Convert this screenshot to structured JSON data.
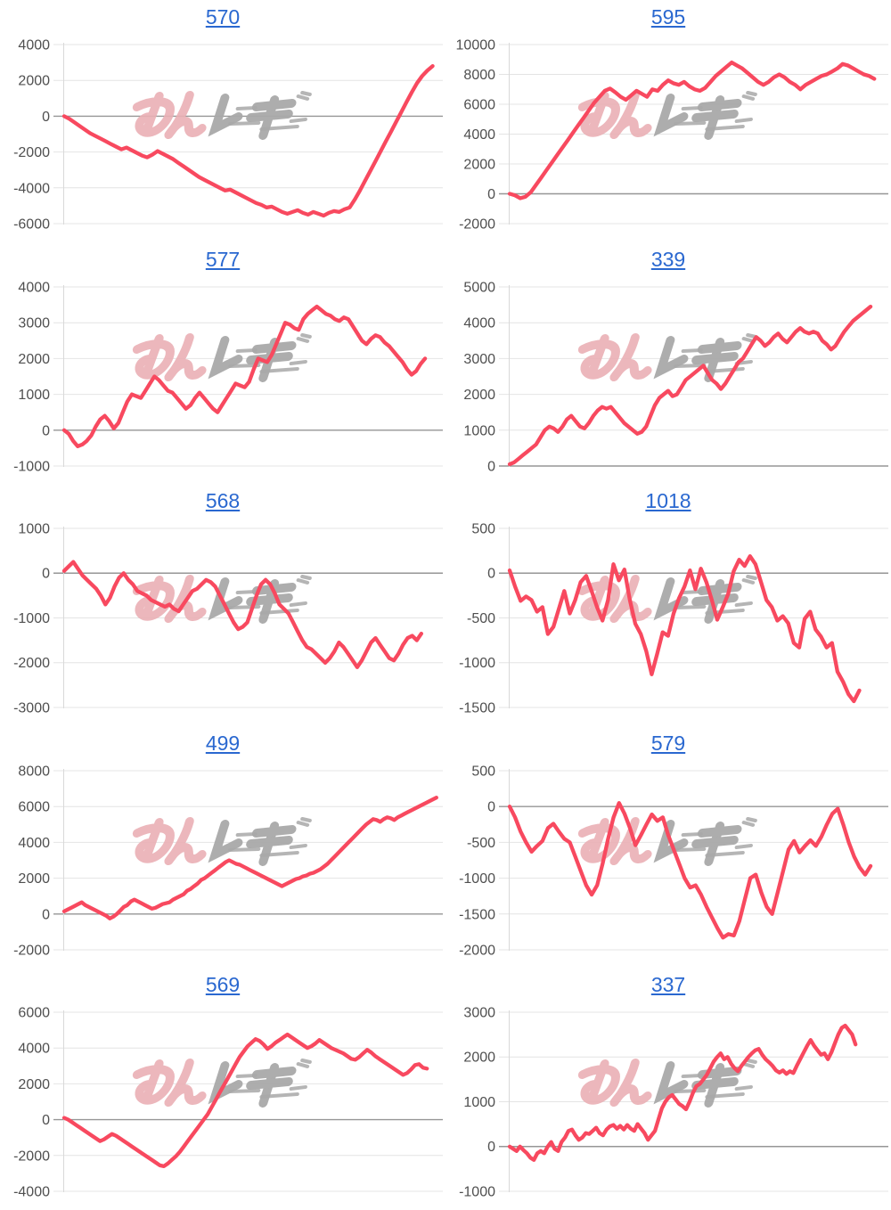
{
  "ui": {
    "watermark": {
      "pink_text": "みん",
      "gray_text": "レポ"
    },
    "colors": {
      "line": "#f8495f",
      "title_link": "#2a68d0",
      "axis_label": "#4f4f4f",
      "gridline": "#e4e4e4",
      "zero_line": "#969696",
      "axis_spine": "#d9d9d9",
      "watermark_pink": "#eab0b5",
      "watermark_gray": "#a9a9a9"
    }
  },
  "chart_data": [
    {
      "type": "line",
      "title": "570",
      "ylim": [
        -6000,
        4000
      ],
      "y_step": 2000,
      "grid": true,
      "span": 0.98,
      "values": [
        0,
        -150,
        -350,
        -550,
        -750,
        -950,
        -1100,
        -1250,
        -1400,
        -1550,
        -1700,
        -1850,
        -1750,
        -1900,
        -2050,
        -2200,
        -2300,
        -2150,
        -1950,
        -2100,
        -2250,
        -2400,
        -2600,
        -2800,
        -3000,
        -3200,
        -3400,
        -3550,
        -3700,
        -3850,
        -4000,
        -4150,
        -4100,
        -4250,
        -4400,
        -4550,
        -4700,
        -4850,
        -4950,
        -5100,
        -5050,
        -5200,
        -5350,
        -5450,
        -5350,
        -5250,
        -5400,
        -5500,
        -5350,
        -5450,
        -5550,
        -5400,
        -5300,
        -5350,
        -5200,
        -5100,
        -4650,
        -4150,
        -3600,
        -3050,
        -2500,
        -1950,
        -1400,
        -850,
        -300,
        250,
        800,
        1350,
        1850,
        2250,
        2550,
        2800
      ]
    },
    {
      "type": "line",
      "title": "595",
      "ylim": [
        -2000,
        10000
      ],
      "y_step": 2000,
      "grid": true,
      "span": 0.97,
      "values": [
        0,
        -100,
        -300,
        -200,
        100,
        600,
        1100,
        1600,
        2100,
        2600,
        3100,
        3600,
        4100,
        4600,
        5100,
        5600,
        6100,
        6500,
        6900,
        7050,
        6800,
        6500,
        6300,
        6600,
        6900,
        6700,
        6500,
        7000,
        6900,
        7300,
        7600,
        7400,
        7300,
        7500,
        7200,
        7000,
        6900,
        7100,
        7500,
        7900,
        8200,
        8500,
        8800,
        8600,
        8400,
        8100,
        7800,
        7500,
        7300,
        7500,
        7800,
        8000,
        7800,
        7500,
        7300,
        7000,
        7300,
        7500,
        7700,
        7900,
        8000,
        8200,
        8400,
        8700,
        8600,
        8400,
        8200,
        8000,
        7900,
        7700
      ]
    },
    {
      "type": "line",
      "title": "577",
      "ylim": [
        -1000,
        4000
      ],
      "y_step": 1000,
      "grid": true,
      "span": 0.96,
      "values": [
        0,
        -100,
        -300,
        -450,
        -400,
        -300,
        -150,
        100,
        300,
        400,
        250,
        50,
        200,
        500,
        800,
        1000,
        950,
        900,
        1100,
        1300,
        1500,
        1400,
        1250,
        1100,
        1050,
        900,
        750,
        600,
        700,
        900,
        1050,
        900,
        750,
        600,
        500,
        700,
        900,
        1100,
        1300,
        1250,
        1200,
        1350,
        1700,
        2000,
        1950,
        1900,
        2100,
        2400,
        2700,
        3000,
        2950,
        2850,
        2800,
        3100,
        3250,
        3350,
        3450,
        3350,
        3250,
        3200,
        3100,
        3050,
        3150,
        3100,
        2900,
        2700,
        2500,
        2400,
        2550,
        2650,
        2600,
        2450,
        2350,
        2200,
        2050,
        1900,
        1700,
        1550,
        1650,
        1850,
        2000
      ]
    },
    {
      "type": "line",
      "title": "339",
      "ylim": [
        0,
        5000
      ],
      "y_step": 1000,
      "grid": true,
      "span": 0.96,
      "values": [
        50,
        100,
        200,
        300,
        400,
        500,
        600,
        800,
        1000,
        1100,
        1050,
        950,
        1100,
        1300,
        1400,
        1250,
        1100,
        1050,
        1200,
        1400,
        1550,
        1650,
        1600,
        1650,
        1500,
        1350,
        1200,
        1100,
        1000,
        900,
        950,
        1100,
        1400,
        1700,
        1900,
        2000,
        2100,
        1950,
        2000,
        2200,
        2400,
        2500,
        2600,
        2700,
        2800,
        2600,
        2400,
        2300,
        2150,
        2300,
        2500,
        2700,
        2900,
        3000,
        3200,
        3400,
        3600,
        3500,
        3350,
        3450,
        3600,
        3700,
        3550,
        3450,
        3600,
        3750,
        3850,
        3750,
        3700,
        3750,
        3700,
        3500,
        3400,
        3250,
        3350,
        3550,
        3750,
        3900,
        4050,
        4150,
        4250,
        4350,
        4450
      ]
    },
    {
      "type": "line",
      "title": "568",
      "ylim": [
        -3000,
        1000
      ],
      "y_step": 1000,
      "grid": true,
      "span": 0.95,
      "values": [
        50,
        150,
        250,
        100,
        -50,
        -150,
        -250,
        -350,
        -500,
        -700,
        -550,
        -300,
        -100,
        0,
        -150,
        -250,
        -400,
        -450,
        -500,
        -600,
        -650,
        -700,
        -750,
        -700,
        -800,
        -850,
        -700,
        -550,
        -400,
        -350,
        -250,
        -150,
        -200,
        -300,
        -500,
        -700,
        -900,
        -1100,
        -1250,
        -1200,
        -1100,
        -800,
        -500,
        -250,
        -150,
        -250,
        -450,
        -700,
        -800,
        -900,
        -1100,
        -1300,
        -1500,
        -1650,
        -1700,
        -1800,
        -1900,
        -2000,
        -1900,
        -1750,
        -1550,
        -1650,
        -1800,
        -1950,
        -2100,
        -1950,
        -1750,
        -1550,
        -1450,
        -1600,
        -1750,
        -1900,
        -1950,
        -1800,
        -1600,
        -1450,
        -1400,
        -1500,
        -1350
      ]
    },
    {
      "type": "line",
      "title": "1018",
      "ylim": [
        -1500,
        500
      ],
      "y_step": 500,
      "grid": true,
      "span": 0.93,
      "values": [
        30,
        -150,
        -310,
        -260,
        -300,
        -430,
        -380,
        -680,
        -600,
        -400,
        -200,
        -450,
        -300,
        -100,
        -30,
        -200,
        -380,
        -530,
        -300,
        100,
        -80,
        40,
        -300,
        -565,
        -680,
        -870,
        -1130,
        -900,
        -660,
        -700,
        -450,
        -280,
        -150,
        30,
        -180,
        50,
        -100,
        -300,
        -520,
        -380,
        -230,
        20,
        150,
        80,
        190,
        100,
        -100,
        -300,
        -380,
        -530,
        -480,
        -560,
        -780,
        -830,
        -510,
        -430,
        -630,
        -710,
        -830,
        -780,
        -1100,
        -1210,
        -1350,
        -1430,
        -1310
      ]
    },
    {
      "type": "line",
      "title": "499",
      "ylim": [
        -2000,
        8000
      ],
      "y_step": 2000,
      "grid": true,
      "span": 0.99,
      "values": [
        150,
        250,
        350,
        450,
        550,
        650,
        500,
        400,
        300,
        200,
        100,
        0,
        -100,
        -250,
        -150,
        0,
        200,
        400,
        500,
        700,
        800,
        700,
        600,
        500,
        400,
        300,
        350,
        450,
        550,
        600,
        650,
        800,
        900,
        1000,
        1100,
        1300,
        1400,
        1550,
        1700,
        1900,
        2000,
        2150,
        2300,
        2450,
        2600,
        2750,
        2900,
        3000,
        2900,
        2800,
        2750,
        2650,
        2550,
        2450,
        2350,
        2250,
        2150,
        2050,
        1950,
        1850,
        1750,
        1650,
        1550,
        1650,
        1750,
        1850,
        1950,
        2000,
        2100,
        2150,
        2250,
        2300,
        2400,
        2500,
        2650,
        2800,
        3000,
        3200,
        3400,
        3600,
        3800,
        4000,
        4200,
        4400,
        4600,
        4800,
        5000,
        5150,
        5300,
        5250,
        5150,
        5300,
        5400,
        5350,
        5250,
        5400,
        5500,
        5600,
        5700,
        5800,
        5900,
        6000,
        6100,
        6200,
        6300,
        6400,
        6500
      ]
    },
    {
      "type": "line",
      "title": "579",
      "ylim": [
        -2000,
        500
      ],
      "y_step": 500,
      "grid": true,
      "span": 0.96,
      "values": [
        0,
        -150,
        -350,
        -500,
        -630,
        -550,
        -480,
        -300,
        -240,
        -350,
        -450,
        -500,
        -700,
        -900,
        -1100,
        -1230,
        -1100,
        -800,
        -450,
        -150,
        50,
        -100,
        -300,
        -540,
        -400,
        -250,
        -110,
        -200,
        -150,
        -400,
        -600,
        -800,
        -1000,
        -1130,
        -1100,
        -1230,
        -1400,
        -1550,
        -1700,
        -1830,
        -1780,
        -1800,
        -1600,
        -1300,
        -1000,
        -950,
        -1200,
        -1400,
        -1500,
        -1200,
        -900,
        -600,
        -480,
        -640,
        -550,
        -470,
        -550,
        -420,
        -250,
        -100,
        -30,
        -250,
        -500,
        -700,
        -850,
        -950,
        -830
      ]
    },
    {
      "type": "line",
      "title": "569",
      "ylim": [
        -4000,
        6000
      ],
      "y_step": 2000,
      "grid": true,
      "span": 0.965,
      "values": [
        100,
        0,
        -150,
        -300,
        -450,
        -600,
        -750,
        -900,
        -1050,
        -1200,
        -1100,
        -950,
        -800,
        -900,
        -1050,
        -1200,
        -1350,
        -1500,
        -1650,
        -1800,
        -1950,
        -2100,
        -2250,
        -2400,
        -2550,
        -2600,
        -2450,
        -2250,
        -2050,
        -1800,
        -1500,
        -1200,
        -900,
        -600,
        -300,
        0,
        300,
        700,
        1100,
        1500,
        1900,
        2300,
        2700,
        3100,
        3500,
        3800,
        4100,
        4300,
        4500,
        4400,
        4200,
        3950,
        4100,
        4300,
        4450,
        4600,
        4750,
        4600,
        4450,
        4300,
        4150,
        4000,
        4100,
        4250,
        4450,
        4300,
        4150,
        4000,
        3900,
        3800,
        3700,
        3550,
        3400,
        3350,
        3500,
        3700,
        3900,
        3750,
        3550,
        3400,
        3250,
        3100,
        2950,
        2800,
        2650,
        2500,
        2600,
        2800,
        3050,
        3100,
        2900,
        2850
      ]
    },
    {
      "type": "line",
      "title": "337",
      "ylim": [
        -1000,
        3000
      ],
      "y_step": 1000,
      "grid": true,
      "span": 0.92,
      "values": [
        0,
        -50,
        -100,
        0,
        -80,
        -150,
        -250,
        -300,
        -150,
        -100,
        -150,
        0,
        100,
        -50,
        -100,
        100,
        200,
        350,
        380,
        250,
        150,
        200,
        300,
        280,
        350,
        420,
        300,
        250,
        380,
        450,
        480,
        400,
        460,
        380,
        480,
        400,
        350,
        500,
        400,
        300,
        150,
        250,
        350,
        600,
        850,
        1000,
        1100,
        1150,
        1050,
        950,
        900,
        830,
        1000,
        1200,
        1350,
        1400,
        1500,
        1600,
        1750,
        1900,
        2000,
        2080,
        1950,
        2000,
        1850,
        1750,
        1680,
        1800,
        1900,
        2000,
        2080,
        2150,
        2180,
        2050,
        1950,
        1880,
        1800,
        1700,
        1650,
        1700,
        1620,
        1680,
        1640,
        1800,
        1950,
        2100,
        2250,
        2380,
        2250,
        2150,
        2050,
        2080,
        1950,
        2100,
        2300,
        2500,
        2650,
        2700,
        2600,
        2500,
        2280
      ]
    }
  ]
}
